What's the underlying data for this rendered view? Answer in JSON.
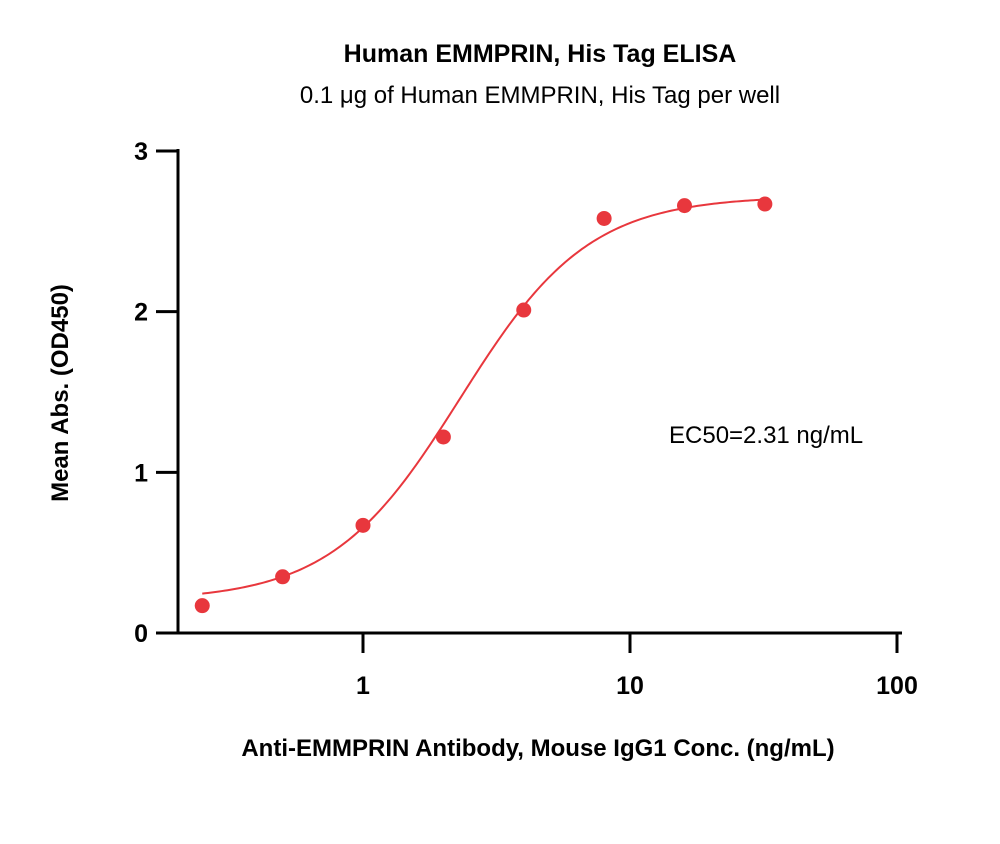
{
  "chart_data": {
    "type": "scatter",
    "title": "Human EMMPRIN, His Tag ELISA",
    "subtitle": "0.1 μg of Human EMMPRIN, His Tag per well",
    "xlabel": "Anti-EMMPRIN Antibody, Mouse IgG1 Conc. (ng/mL)",
    "ylabel": "Mean Abs. (OD450)",
    "x_scale": "log",
    "xlim": [
      0.2,
      100
    ],
    "ylim": [
      0,
      3
    ],
    "x_ticks": [
      1,
      10,
      100
    ],
    "x_tick_labels": [
      "1",
      "10",
      "100"
    ],
    "y_ticks": [
      0,
      1,
      2,
      3
    ],
    "y_tick_labels": [
      "0",
      "1",
      "2",
      "3"
    ],
    "grid": false,
    "legend": "none",
    "series": [
      {
        "color": "#e8373d",
        "x": [
          0.25,
          0.5,
          1,
          2,
          4,
          8,
          16,
          32
        ],
        "y": [
          0.17,
          0.35,
          0.67,
          1.22,
          2.01,
          2.58,
          2.66,
          2.67
        ],
        "fit": {
          "model": "4PL",
          "bottom": 0.2,
          "top": 2.72,
          "ec50": 2.31,
          "hill": 1.8
        }
      }
    ],
    "annotations": [
      {
        "text": "EC50=2.31 ng/mL"
      }
    ]
  }
}
